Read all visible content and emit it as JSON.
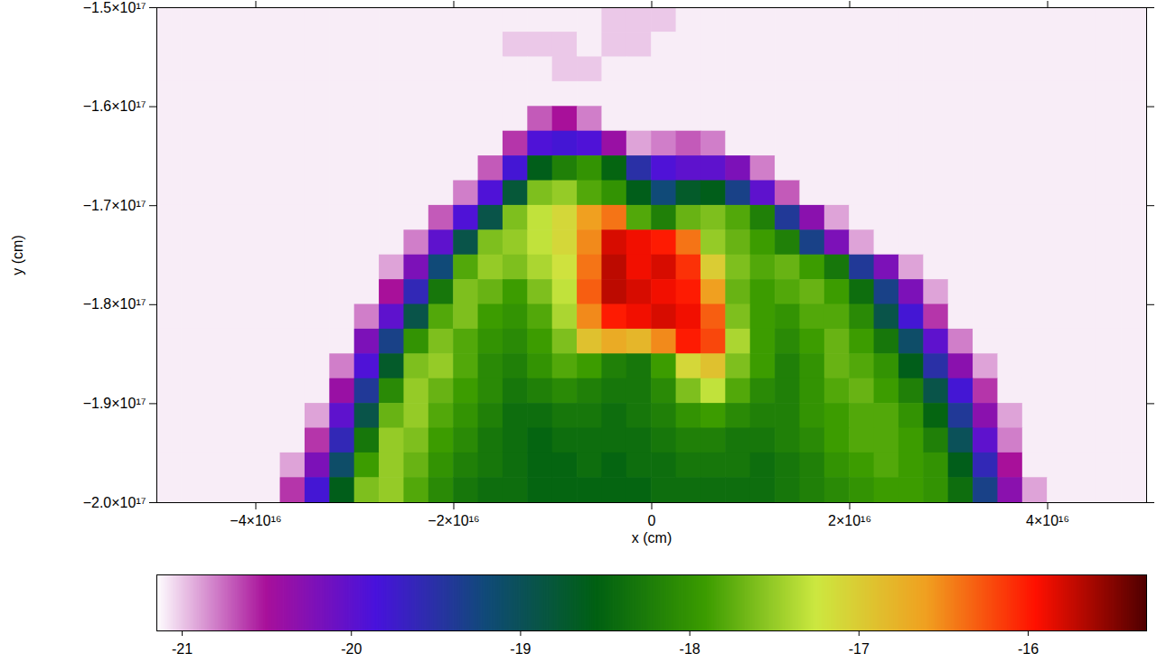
{
  "chart_data": {
    "type": "heatmap",
    "xlabel": "x (cm)",
    "ylabel": "y (cm)",
    "xlim": [
      -5e+16,
      5e+16
    ],
    "xticks": [
      {
        "value": -4e+16,
        "label": "−4×10¹⁶"
      },
      {
        "value": -2e+16,
        "label": "−2×10¹⁶"
      },
      0,
      {
        "value": 2e+16,
        "label": "2×10¹⁶"
      },
      {
        "value": 4e+16,
        "label": "4×10¹⁶"
      }
    ],
    "ylim": [
      -2e+17,
      -1.5e+17
    ],
    "yticks": [
      {
        "value": -1.5e+17,
        "label": "−1.5×10¹⁷"
      },
      {
        "value": -1.6e+17,
        "label": "−1.6×10¹⁷"
      },
      {
        "value": -1.7e+17,
        "label": "−1.7×10¹⁷"
      },
      {
        "value": -1.8e+17,
        "label": "−1.8×10¹⁷"
      },
      {
        "value": -1.9e+17,
        "label": "−1.9×10¹⁷"
      },
      {
        "value": -2e+17,
        "label": "−2.0×10¹⁷"
      }
    ],
    "x": [
      -4.875e+16,
      -4.625e+16,
      -4.375e+16,
      -4.125e+16,
      -3.875e+16,
      -3.625e+16,
      -3.375e+16,
      -3.125e+16,
      -2.875e+16,
      -2.625e+16,
      -2.375e+16,
      -2.125e+16,
      -1.875e+16,
      -1.625e+16,
      -1.375e+16,
      -1.125e+16,
      -8750000000000000.0,
      -6250000000000000.0,
      -3750000000000000.0,
      -1250000000000000.0,
      1250000000000000.0,
      3750000000000000.0,
      6250000000000000.0,
      8750000000000000.0,
      1.125e+16,
      1.375e+16,
      1.625e+16,
      1.875e+16,
      2.125e+16,
      2.375e+16,
      2.625e+16,
      2.875e+16,
      3.125e+16,
      3.375e+16,
      3.625e+16,
      3.875e+16,
      4.125e+16,
      4.375e+16,
      4.625e+16,
      4.875e+16
    ],
    "y": [
      -1.5125e+17,
      -1.5375e+17,
      -1.5625e+17,
      -1.5875e+17,
      -1.6125e+17,
      -1.6375e+17,
      -1.6625e+17,
      -1.6875e+17,
      -1.7125e+17,
      -1.7375e+17,
      -1.7625e+17,
      -1.7875e+17,
      -1.8125e+17,
      -1.8375e+17,
      -1.8625e+17,
      -1.8875e+17,
      -1.9125e+17,
      -1.9375e+17,
      -1.9625e+17,
      -1.9875e+17
    ],
    "z": [
      [
        -21.1,
        -21.1,
        -21.1,
        -21.1,
        -21.1,
        -21.1,
        -21.1,
        -21.1,
        -21.1,
        -21.1,
        -21.1,
        -21.1,
        -21.1,
        -21.1,
        -21.1,
        -21.1,
        -21.1,
        -21.1,
        -21.0,
        -21.0,
        -21.0,
        -21.1,
        -21.1,
        -21.1,
        -21.1,
        -21.1,
        -21.1,
        -21.1,
        -21.1,
        -21.1,
        -21.1,
        -21.1,
        -21.1,
        -21.1,
        -21.1,
        -21.1,
        -21.1,
        -21.1,
        -21.1,
        -21.1
      ],
      [
        -21.1,
        -21.1,
        -21.1,
        -21.1,
        -21.1,
        -21.1,
        -21.1,
        -21.1,
        -21.1,
        -21.1,
        -21.1,
        -21.1,
        -21.1,
        -21.1,
        -21.0,
        -21.0,
        -21.0,
        -21.1,
        -21.0,
        -21.0,
        -21.1,
        -21.1,
        -21.1,
        -21.1,
        -21.1,
        -21.1,
        -21.1,
        -21.1,
        -21.1,
        -21.1,
        -21.1,
        -21.1,
        -21.1,
        -21.1,
        -21.1,
        -21.1,
        -21.1,
        -21.1,
        -21.1,
        -21.1
      ],
      [
        -21.1,
        -21.1,
        -21.1,
        -21.1,
        -21.1,
        -21.1,
        -21.1,
        -21.1,
        -21.1,
        -21.1,
        -21.1,
        -21.1,
        -21.1,
        -21.1,
        -21.1,
        -21.1,
        -21.0,
        -21.0,
        -21.1,
        -21.1,
        -21.1,
        -21.1,
        -21.1,
        -21.1,
        -21.1,
        -21.1,
        -21.1,
        -21.1,
        -21.1,
        -21.1,
        -21.1,
        -21.1,
        -21.1,
        -21.1,
        -21.1,
        -21.1,
        -21.1,
        -21.1,
        -21.1,
        -21.1
      ],
      [
        -21.1,
        -21.1,
        -21.1,
        -21.1,
        -21.1,
        -21.1,
        -21.1,
        -21.1,
        -21.1,
        -21.1,
        -21.1,
        -21.1,
        -21.1,
        -21.1,
        -21.1,
        -21.1,
        -21.1,
        -21.1,
        -21.1,
        -21.1,
        -21.1,
        -21.1,
        -21.1,
        -21.1,
        -21.1,
        -21.1,
        -21.1,
        -21.1,
        -21.1,
        -21.1,
        -21.1,
        -21.1,
        -21.1,
        -21.1,
        -21.1,
        -21.1,
        -21.1,
        -21.1,
        -21.1,
        -21.1
      ],
      [
        -21.1,
        -21.1,
        -21.1,
        -21.1,
        -21.1,
        -21.1,
        -21.1,
        -21.1,
        -21.1,
        -21.1,
        -21.1,
        -21.1,
        -21.1,
        -21.1,
        -21.1,
        -20.7,
        -20.5,
        -20.8,
        -21.1,
        -21.1,
        -21.1,
        -21.1,
        -21.1,
        -21.1,
        -21.1,
        -21.1,
        -21.1,
        -21.1,
        -21.1,
        -21.1,
        -21.1,
        -21.1,
        -21.1,
        -21.1,
        -21.1,
        -21.1,
        -21.1,
        -21.1,
        -21.1,
        -21.1
      ],
      [
        -21.1,
        -21.1,
        -21.1,
        -21.1,
        -21.1,
        -21.1,
        -21.1,
        -21.1,
        -21.1,
        -21.1,
        -21.1,
        -21.1,
        -21.1,
        -21.1,
        -20.6,
        -19.9,
        -19.8,
        -19.9,
        -20.4,
        -20.9,
        -20.8,
        -20.7,
        -20.8,
        -21.1,
        -21.1,
        -21.1,
        -21.1,
        -21.1,
        -21.1,
        -21.1,
        -21.1,
        -21.1,
        -21.1,
        -21.1,
        -21.1,
        -21.1,
        -21.1,
        -21.1,
        -21.1,
        -21.1
      ],
      [
        -21.1,
        -21.1,
        -21.1,
        -21.1,
        -21.1,
        -21.1,
        -21.1,
        -21.1,
        -21.1,
        -21.1,
        -21.1,
        -21.1,
        -21.1,
        -20.7,
        -19.8,
        -18.6,
        -18.2,
        -18.0,
        -18.5,
        -19.5,
        -19.9,
        -20.0,
        -20.0,
        -20.2,
        -20.8,
        -21.1,
        -21.1,
        -21.1,
        -21.1,
        -21.1,
        -21.1,
        -21.1,
        -21.1,
        -21.1,
        -21.1,
        -21.1,
        -21.1,
        -21.1,
        -21.1,
        -21.1
      ],
      [
        -21.1,
        -21.1,
        -21.1,
        -21.1,
        -21.1,
        -21.1,
        -21.1,
        -21.1,
        -21.1,
        -21.1,
        -21.1,
        -21.1,
        -20.8,
        -19.9,
        -18.8,
        -17.6,
        -17.5,
        -17.8,
        -18.0,
        -18.6,
        -19.2,
        -18.7,
        -18.6,
        -19.3,
        -20.0,
        -20.7,
        -21.1,
        -21.1,
        -21.1,
        -21.1,
        -21.1,
        -21.1,
        -21.1,
        -21.1,
        -21.1,
        -21.1,
        -21.1,
        -21.1,
        -21.1,
        -21.1
      ],
      [
        -21.1,
        -21.1,
        -21.1,
        -21.1,
        -21.1,
        -21.1,
        -21.1,
        -21.1,
        -21.1,
        -21.1,
        -21.1,
        -20.7,
        -19.9,
        -18.9,
        -17.6,
        -17.3,
        -17.1,
        -16.6,
        -16.4,
        -17.8,
        -18.2,
        -17.7,
        -17.6,
        -17.8,
        -18.2,
        -19.4,
        -20.3,
        -20.9,
        -21.1,
        -21.1,
        -21.1,
        -21.1,
        -21.1,
        -21.1,
        -21.1,
        -21.1,
        -21.1,
        -21.1,
        -21.1,
        -21.1
      ],
      [
        -21.1,
        -21.1,
        -21.1,
        -21.1,
        -21.1,
        -21.1,
        -21.1,
        -21.1,
        -21.1,
        -21.1,
        -20.8,
        -20.0,
        -18.9,
        -17.6,
        -17.5,
        -17.3,
        -17.1,
        -16.5,
        -15.8,
        -15.9,
        -16.0,
        -16.4,
        -17.5,
        -17.7,
        -17.9,
        -18.2,
        -19.3,
        -20.2,
        -20.9,
        -21.1,
        -21.1,
        -21.1,
        -21.1,
        -21.1,
        -21.1,
        -21.1,
        -21.1,
        -21.1,
        -21.1,
        -21.1
      ],
      [
        -21.1,
        -21.1,
        -21.1,
        -21.1,
        -21.1,
        -21.1,
        -21.1,
        -21.1,
        -21.1,
        -20.9,
        -20.2,
        -19.2,
        -17.8,
        -17.5,
        -17.6,
        -17.4,
        -17.2,
        -16.4,
        -15.7,
        -15.9,
        -15.8,
        -16.1,
        -17.0,
        -17.6,
        -17.8,
        -17.7,
        -17.9,
        -18.3,
        -19.4,
        -20.2,
        -20.9,
        -21.1,
        -21.1,
        -21.1,
        -21.1,
        -21.1,
        -21.1,
        -21.1,
        -21.1,
        -21.1
      ],
      [
        -21.1,
        -21.1,
        -21.1,
        -21.1,
        -21.1,
        -21.1,
        -21.1,
        -21.1,
        -21.1,
        -20.5,
        -19.6,
        -18.3,
        -17.6,
        -17.7,
        -17.9,
        -17.6,
        -17.3,
        -16.3,
        -15.7,
        -15.8,
        -15.9,
        -16.0,
        -16.6,
        -17.7,
        -17.9,
        -17.8,
        -17.7,
        -17.9,
        -18.4,
        -19.3,
        -20.2,
        -20.9,
        -21.1,
        -21.1,
        -21.1,
        -21.1,
        -21.1,
        -21.1,
        -21.1,
        -21.1
      ],
      [
        -21.1,
        -21.1,
        -21.1,
        -21.1,
        -21.1,
        -21.1,
        -21.1,
        -21.1,
        -20.8,
        -20.0,
        -18.9,
        -17.8,
        -17.6,
        -17.9,
        -18.0,
        -17.8,
        -17.4,
        -16.5,
        -16.0,
        -15.9,
        -15.8,
        -15.9,
        -16.3,
        -17.6,
        -17.9,
        -18.0,
        -17.8,
        -17.8,
        -18.1,
        -18.9,
        -19.8,
        -20.6,
        -21.1,
        -21.1,
        -21.1,
        -21.1,
        -21.1,
        -21.1,
        -21.1,
        -21.1
      ],
      [
        -21.1,
        -21.1,
        -21.1,
        -21.1,
        -21.1,
        -21.1,
        -21.1,
        -21.1,
        -20.2,
        -19.3,
        -18.0,
        -17.6,
        -17.8,
        -18.0,
        -18.1,
        -17.9,
        -17.6,
        -16.9,
        -16.7,
        -16.8,
        -16.5,
        -16.0,
        -16.2,
        -17.4,
        -17.9,
        -18.1,
        -17.9,
        -17.7,
        -17.9,
        -18.3,
        -19.1,
        -20.0,
        -20.8,
        -21.1,
        -21.1,
        -21.1,
        -21.1,
        -21.1,
        -21.1,
        -21.1
      ],
      [
        -21.1,
        -21.1,
        -21.1,
        -21.1,
        -21.1,
        -21.1,
        -21.1,
        -20.8,
        -19.9,
        -18.7,
        -17.6,
        -17.5,
        -17.8,
        -18.1,
        -18.2,
        -18.0,
        -17.8,
        -17.9,
        -18.2,
        -18.3,
        -17.9,
        -17.1,
        -16.9,
        -17.6,
        -17.9,
        -18.2,
        -18.0,
        -17.7,
        -17.8,
        -18.0,
        -18.6,
        -19.5,
        -20.3,
        -20.9,
        -21.1,
        -21.1,
        -21.1,
        -21.1,
        -21.1,
        -21.1
      ],
      [
        -21.1,
        -21.1,
        -21.1,
        -21.1,
        -21.1,
        -21.1,
        -21.1,
        -20.4,
        -19.4,
        -18.1,
        -17.5,
        -17.7,
        -17.9,
        -18.1,
        -18.3,
        -18.2,
        -18.1,
        -18.2,
        -18.3,
        -18.3,
        -18.1,
        -17.6,
        -17.3,
        -17.8,
        -18.1,
        -18.2,
        -18.0,
        -17.8,
        -17.7,
        -17.9,
        -18.2,
        -18.9,
        -19.8,
        -20.6,
        -21.1,
        -21.1,
        -21.1,
        -21.1,
        -21.1,
        -21.1
      ],
      [
        -21.1,
        -21.1,
        -21.1,
        -21.1,
        -21.1,
        -21.1,
        -20.9,
        -20.0,
        -18.9,
        -17.7,
        -17.5,
        -17.8,
        -18.0,
        -18.2,
        -18.4,
        -18.4,
        -18.3,
        -18.3,
        -18.4,
        -18.3,
        -18.2,
        -18.0,
        -17.9,
        -18.1,
        -18.2,
        -18.2,
        -18.0,
        -17.9,
        -17.8,
        -17.8,
        -18.0,
        -18.5,
        -19.4,
        -20.3,
        -20.9,
        -21.1,
        -21.1,
        -21.1,
        -21.1,
        -21.1
      ],
      [
        -21.1,
        -21.1,
        -21.1,
        -21.1,
        -21.1,
        -21.1,
        -20.6,
        -19.6,
        -18.3,
        -17.5,
        -17.6,
        -17.9,
        -18.1,
        -18.3,
        -18.4,
        -18.5,
        -18.4,
        -18.4,
        -18.4,
        -18.4,
        -18.3,
        -18.2,
        -18.2,
        -18.3,
        -18.3,
        -18.2,
        -18.1,
        -17.9,
        -17.8,
        -17.8,
        -17.9,
        -18.2,
        -19.0,
        -20.0,
        -20.8,
        -21.1,
        -21.1,
        -21.1,
        -21.1,
        -21.1
      ],
      [
        -21.1,
        -21.1,
        -21.1,
        -21.1,
        -21.1,
        -20.9,
        -20.2,
        -19.1,
        -17.9,
        -17.5,
        -17.7,
        -18.0,
        -18.2,
        -18.3,
        -18.4,
        -18.5,
        -18.5,
        -18.4,
        -18.5,
        -18.4,
        -18.4,
        -18.3,
        -18.3,
        -18.3,
        -18.4,
        -18.3,
        -18.2,
        -18.0,
        -17.9,
        -17.8,
        -17.9,
        -18.0,
        -18.6,
        -19.6,
        -20.5,
        -21.1,
        -21.1,
        -21.1,
        -21.1,
        -21.1
      ],
      [
        -21.1,
        -21.1,
        -21.1,
        -21.1,
        -21.1,
        -20.6,
        -19.8,
        -18.6,
        -17.6,
        -17.5,
        -17.8,
        -18.1,
        -18.3,
        -18.4,
        -18.4,
        -18.5,
        -18.5,
        -18.5,
        -18.5,
        -18.5,
        -18.4,
        -18.4,
        -18.4,
        -18.4,
        -18.4,
        -18.3,
        -18.2,
        -18.1,
        -18.0,
        -17.9,
        -17.9,
        -18.0,
        -18.4,
        -19.3,
        -20.3,
        -20.9,
        -21.1,
        -21.1,
        -21.1,
        -21.1
      ]
    ],
    "colorbar_range": [
      -21.15,
      -15.3
    ],
    "colorbar_ticks": [
      -21,
      -20,
      -19,
      -18,
      -17,
      -16
    ]
  }
}
